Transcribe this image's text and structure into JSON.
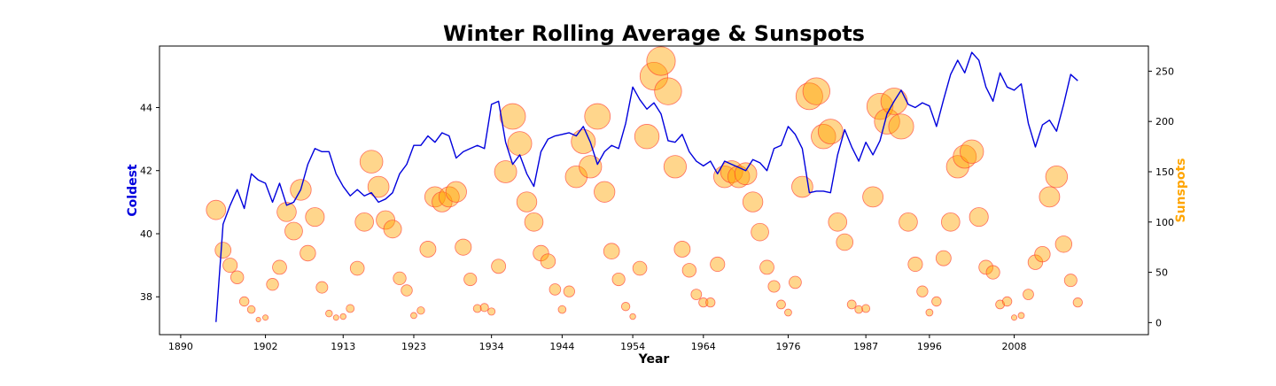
{
  "chart_data": {
    "type": "line+scatter",
    "title": "Winter Rolling Average & Sunspots",
    "xlabel": "Year",
    "ylabel_left": "Coldest",
    "ylabel_right": "Sunspots",
    "colors": {
      "line": "#0000dd",
      "ylabel_left": "#0000dd",
      "ylabel_right": "#ffa500",
      "bubble_fill": "#ffa500",
      "bubble_edge": "#ff3b30"
    },
    "xlim": [
      1887,
      2027
    ],
    "ylim_left": [
      36.8,
      45.95
    ],
    "ylim_right": [
      -12,
      275
    ],
    "x_ticks": [
      1890,
      1902,
      1913,
      1923,
      1934,
      1944,
      1954,
      1964,
      1976,
      1987,
      1996,
      2008
    ],
    "y_ticks_left": [
      38,
      40,
      42,
      44
    ],
    "y_ticks_right": [
      0,
      50,
      100,
      150,
      200,
      250
    ],
    "grid": false,
    "series": [
      {
        "label": "Coldest",
        "type": "line",
        "x": [
          1895,
          1896,
          1897,
          1898,
          1899,
          1900,
          1901,
          1902,
          1903,
          1904,
          1905,
          1906,
          1907,
          1908,
          1909,
          1910,
          1911,
          1912,
          1913,
          1914,
          1915,
          1916,
          1917,
          1918,
          1919,
          1920,
          1921,
          1922,
          1923,
          1924,
          1925,
          1926,
          1927,
          1928,
          1929,
          1930,
          1931,
          1932,
          1933,
          1934,
          1935,
          1936,
          1937,
          1938,
          1939,
          1940,
          1941,
          1942,
          1943,
          1944,
          1945,
          1946,
          1947,
          1948,
          1949,
          1950,
          1951,
          1952,
          1953,
          1954,
          1955,
          1956,
          1957,
          1958,
          1959,
          1960,
          1961,
          1962,
          1963,
          1964,
          1965,
          1966,
          1967,
          1968,
          1969,
          1970,
          1971,
          1972,
          1973,
          1974,
          1975,
          1976,
          1977,
          1978,
          1979,
          1980,
          1981,
          1982,
          1983,
          1984,
          1985,
          1986,
          1987,
          1988,
          1989,
          1990,
          1991,
          1992,
          1993,
          1994,
          1995,
          1996,
          1997,
          1998,
          1999,
          2000,
          2001,
          2002,
          2003,
          2004,
          2005,
          2006,
          2007,
          2008,
          2009,
          2010,
          2011,
          2012,
          2013,
          2014,
          2015,
          2016,
          2017
        ],
        "y": [
          37.2,
          40.3,
          40.9,
          41.4,
          40.8,
          41.9,
          41.7,
          41.6,
          41.0,
          41.6,
          40.9,
          41.0,
          41.4,
          42.2,
          42.7,
          42.6,
          42.6,
          41.9,
          41.5,
          41.2,
          41.4,
          41.2,
          41.3,
          41.0,
          41.1,
          41.3,
          41.9,
          42.2,
          42.8,
          42.8,
          43.1,
          42.9,
          43.2,
          43.1,
          42.4,
          42.6,
          42.7,
          42.8,
          42.7,
          44.1,
          44.2,
          42.9,
          42.2,
          42.5,
          41.9,
          41.5,
          42.6,
          43.0,
          43.1,
          43.15,
          43.2,
          43.1,
          43.4,
          42.9,
          42.2,
          42.6,
          42.8,
          42.7,
          43.5,
          44.65,
          44.25,
          43.95,
          44.15,
          43.8,
          42.95,
          42.9,
          43.15,
          42.6,
          42.3,
          42.15,
          42.3,
          41.9,
          42.3,
          42.2,
          42.1,
          42.0,
          42.35,
          42.25,
          42.0,
          42.7,
          42.8,
          43.4,
          43.15,
          42.7,
          41.3,
          41.35,
          41.35,
          41.3,
          42.5,
          43.3,
          42.75,
          42.3,
          42.9,
          42.5,
          42.95,
          43.8,
          44.2,
          44.55,
          44.1,
          44.0,
          44.15,
          44.05,
          43.4,
          44.25,
          45.05,
          45.5,
          45.1,
          45.75,
          45.5,
          44.65,
          44.2,
          45.1,
          44.65,
          44.55,
          44.75,
          43.5,
          42.75,
          43.45,
          43.6,
          43.25,
          44.1,
          45.05,
          44.85
        ]
      },
      {
        "label": "Sunspots",
        "type": "scatter",
        "x": [
          1895,
          1896,
          1897,
          1898,
          1899,
          1900,
          1901,
          1902,
          1903,
          1904,
          1905,
          1906,
          1907,
          1908,
          1909,
          1910,
          1911,
          1912,
          1913,
          1914,
          1915,
          1916,
          1917,
          1918,
          1919,
          1920,
          1921,
          1922,
          1923,
          1924,
          1925,
          1926,
          1927,
          1928,
          1929,
          1930,
          1931,
          1932,
          1933,
          1934,
          1935,
          1936,
          1937,
          1938,
          1939,
          1940,
          1941,
          1942,
          1943,
          1944,
          1945,
          1946,
          1947,
          1948,
          1949,
          1950,
          1951,
          1952,
          1953,
          1954,
          1955,
          1956,
          1957,
          1958,
          1959,
          1960,
          1961,
          1962,
          1963,
          1964,
          1965,
          1966,
          1967,
          1968,
          1969,
          1970,
          1971,
          1972,
          1973,
          1974,
          1975,
          1976,
          1977,
          1978,
          1979,
          1980,
          1981,
          1982,
          1983,
          1984,
          1985,
          1986,
          1987,
          1988,
          1989,
          1990,
          1991,
          1992,
          1993,
          1994,
          1995,
          1996,
          1997,
          1998,
          1999,
          2000,
          2001,
          2002,
          2003,
          2004,
          2005,
          2006,
          2007,
          2008,
          2009,
          2010,
          2011,
          2012,
          2013,
          2014,
          2015,
          2016,
          2017
        ],
        "y": [
          112,
          72,
          57,
          45,
          21,
          13,
          3,
          5,
          38,
          55,
          110,
          91,
          132,
          69,
          105,
          35,
          9,
          5,
          6,
          14,
          54,
          100,
          160,
          135,
          102,
          93,
          44,
          32,
          7,
          12,
          73,
          125,
          120,
          125,
          130,
          75,
          43,
          14,
          15,
          11,
          56,
          150,
          205,
          178,
          120,
          100,
          69,
          61,
          33,
          13,
          31,
          145,
          180,
          155,
          205,
          130,
          71,
          43,
          16,
          6,
          54,
          185,
          245,
          260,
          230,
          155,
          73,
          52,
          28,
          20,
          20,
          58,
          145,
          150,
          145,
          148,
          120,
          90,
          55,
          36,
          18,
          10,
          40,
          135,
          225,
          230,
          185,
          190,
          100,
          80,
          18,
          13,
          14,
          125,
          215,
          200,
          220,
          195,
          100,
          58,
          31,
          10,
          21,
          64,
          100,
          155,
          165,
          170,
          105,
          55,
          50,
          18,
          21,
          5,
          7,
          28,
          60,
          68,
          125,
          145,
          78,
          42,
          20
        ]
      }
    ]
  }
}
